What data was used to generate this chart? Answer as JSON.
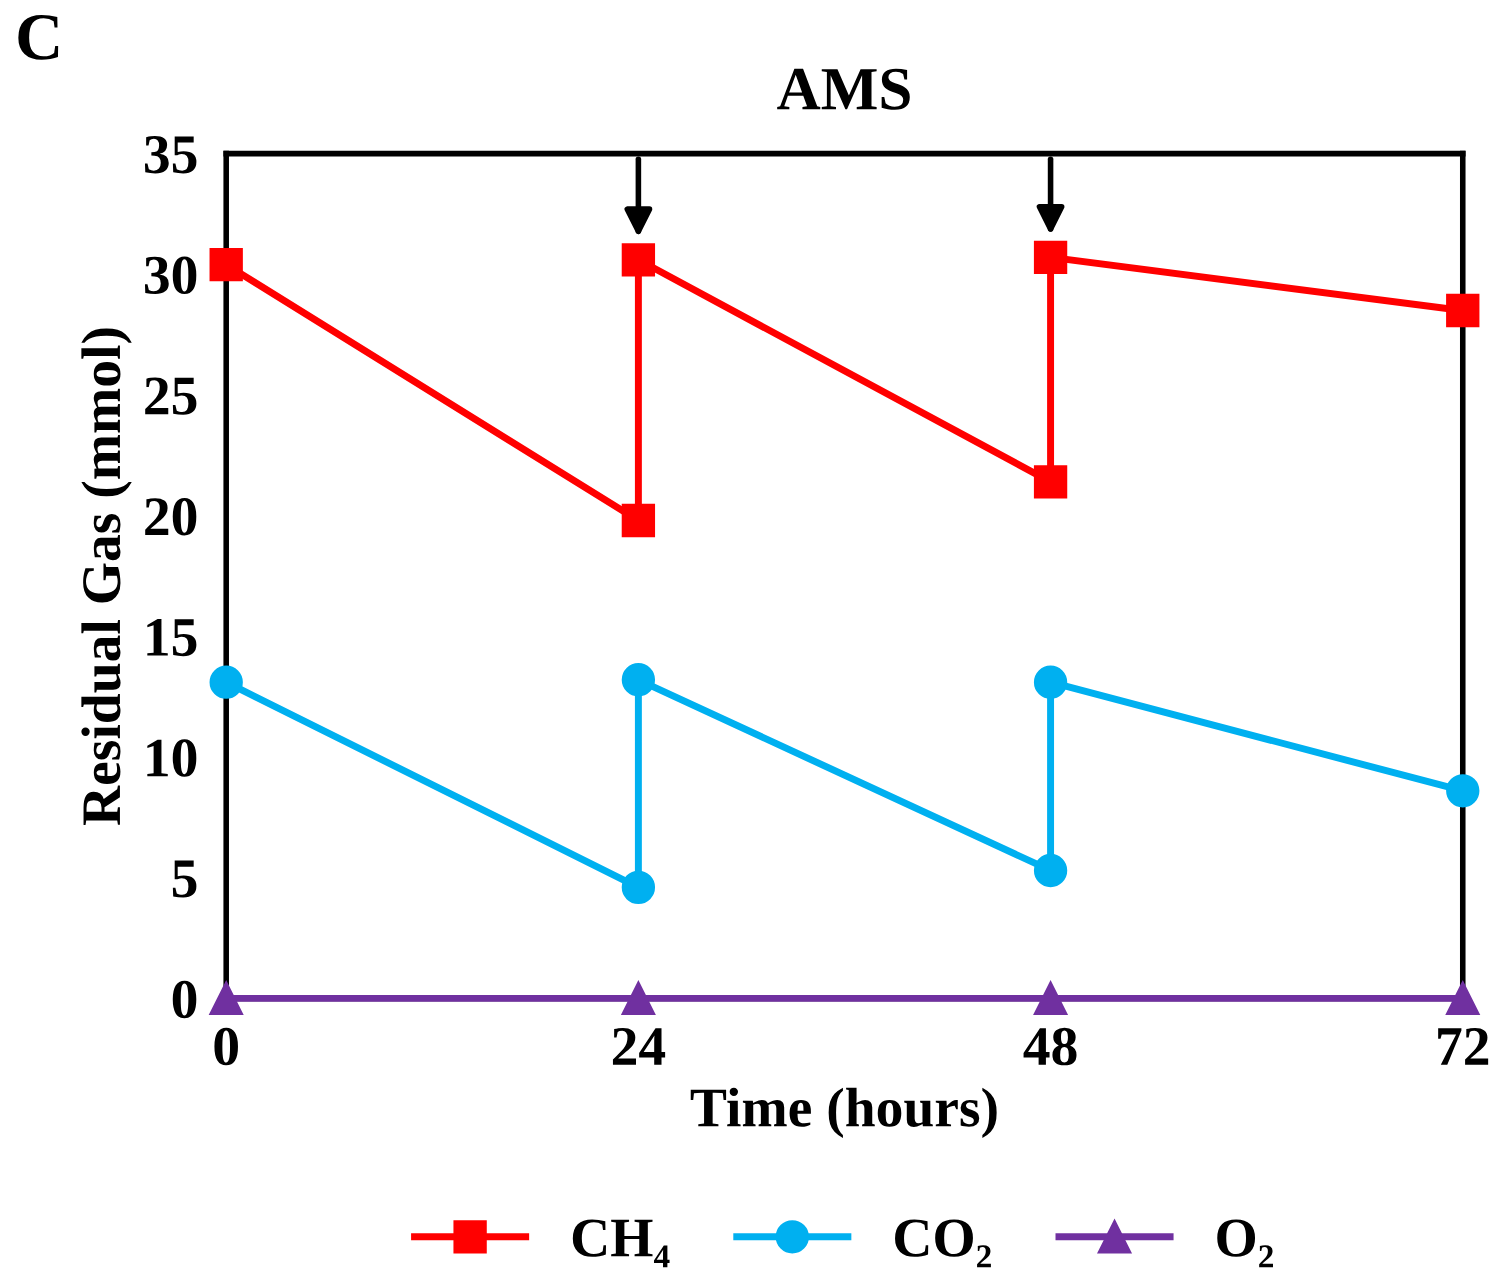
{
  "chart_data": {
    "type": "line",
    "title": "AMS",
    "xlabel": "Time (hours)",
    "ylabel": "Residual Gas (mmol)",
    "annotations": [
      "C"
    ],
    "xlim": [
      0,
      72
    ],
    "xticks": [
      0,
      24,
      48,
      72
    ],
    "ylim": [
      0,
      35
    ],
    "yticks": [
      0,
      5,
      10,
      15,
      20,
      25,
      30,
      35
    ],
    "grid": false,
    "legend": "bottom",
    "series": [
      {
        "name": "CH₄",
        "color": "#ff0000",
        "marker": "square",
        "x": [
          0,
          24,
          24,
          48,
          48,
          72
        ],
        "values": [
          30.4,
          19.8,
          30.6,
          21.4,
          30.7,
          28.5
        ]
      },
      {
        "name": "CO₂",
        "color": "#00b0f0",
        "marker": "circle",
        "x": [
          0,
          24,
          24,
          48,
          48,
          72
        ],
        "values": [
          13.1,
          4.6,
          13.2,
          5.3,
          13.1,
          8.6
        ]
      },
      {
        "name": "O₂",
        "color": "#7030a0",
        "marker": "triangle",
        "x": [
          0,
          24,
          48,
          72
        ],
        "values": [
          0,
          0,
          0,
          0
        ]
      }
    ]
  }
}
